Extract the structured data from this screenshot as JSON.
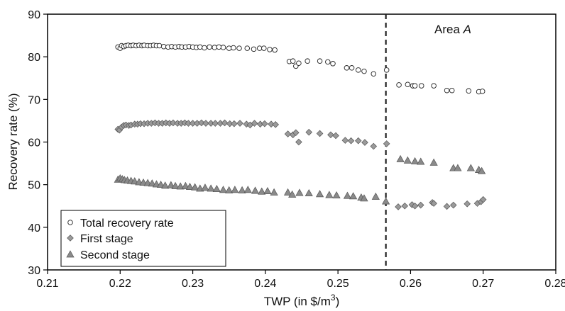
{
  "chart_data": {
    "type": "scatter",
    "xlabel": "TWP (in $/m",
    "xlabel_sup": "3",
    "xlabel_end": ")",
    "ylabel": "Recovery rate (%)",
    "xlim": [
      0.21,
      0.28
    ],
    "ylim": [
      30,
      90
    ],
    "xticks": [
      0.21,
      0.22,
      0.23,
      0.24,
      0.25,
      0.26,
      0.27,
      0.28
    ],
    "xtick_labels": [
      "0.21",
      "0.22",
      "0.23",
      "0.24",
      "0.25",
      "0.26",
      "0.27",
      "0.28"
    ],
    "yticks": [
      30,
      40,
      50,
      60,
      70,
      80,
      90
    ],
    "ytick_labels": [
      "30",
      "40",
      "50",
      "60",
      "70",
      "80",
      "90"
    ],
    "grid": false,
    "legend_position": "bottom-left",
    "vline": {
      "x": 0.2566,
      "style": "dashed"
    },
    "annotation": {
      "prefix": "Area ",
      "italic": "A"
    },
    "series": [
      {
        "name": "Total recovery rate",
        "marker": "circle",
        "color": "#ffffff",
        "points": [
          [
            0.2197,
            82.3
          ],
          [
            0.22,
            82.0
          ],
          [
            0.2202,
            82.6
          ],
          [
            0.2205,
            82.4
          ],
          [
            0.2208,
            82.6
          ],
          [
            0.2211,
            82.7
          ],
          [
            0.2215,
            82.6
          ],
          [
            0.2218,
            82.7
          ],
          [
            0.2222,
            82.6
          ],
          [
            0.2226,
            82.7
          ],
          [
            0.223,
            82.6
          ],
          [
            0.2233,
            82.7
          ],
          [
            0.2238,
            82.6
          ],
          [
            0.2242,
            82.6
          ],
          [
            0.2246,
            82.7
          ],
          [
            0.225,
            82.6
          ],
          [
            0.2254,
            82.6
          ],
          [
            0.226,
            82.4
          ],
          [
            0.2266,
            82.3
          ],
          [
            0.2271,
            82.4
          ],
          [
            0.2276,
            82.3
          ],
          [
            0.2281,
            82.4
          ],
          [
            0.2285,
            82.3
          ],
          [
            0.229,
            82.3
          ],
          [
            0.2295,
            82.4
          ],
          [
            0.23,
            82.3
          ],
          [
            0.2305,
            82.2
          ],
          [
            0.231,
            82.3
          ],
          [
            0.2316,
            82.1
          ],
          [
            0.2323,
            82.3
          ],
          [
            0.233,
            82.2
          ],
          [
            0.2336,
            82.3
          ],
          [
            0.2342,
            82.2
          ],
          [
            0.235,
            82.0
          ],
          [
            0.2356,
            82.1
          ],
          [
            0.2364,
            82.0
          ],
          [
            0.2375,
            82.0
          ],
          [
            0.2384,
            81.8
          ],
          [
            0.2392,
            82.0
          ],
          [
            0.2398,
            82.0
          ],
          [
            0.2406,
            81.7
          ],
          [
            0.2413,
            81.6
          ],
          [
            0.2433,
            78.9
          ],
          [
            0.2438,
            79.0
          ],
          [
            0.2442,
            77.8
          ],
          [
            0.2446,
            78.5
          ],
          [
            0.2458,
            79.0
          ],
          [
            0.2475,
            79.0
          ],
          [
            0.2486,
            78.8
          ],
          [
            0.2493,
            78.4
          ],
          [
            0.2512,
            77.4
          ],
          [
            0.2519,
            77.4
          ],
          [
            0.2528,
            76.9
          ],
          [
            0.2536,
            76.6
          ],
          [
            0.2549,
            76.0
          ],
          [
            0.2567,
            76.9
          ],
          [
            0.2584,
            73.4
          ],
          [
            0.2596,
            73.5
          ],
          [
            0.2603,
            73.2
          ],
          [
            0.2606,
            73.2
          ],
          [
            0.2615,
            73.2
          ],
          [
            0.2632,
            73.2
          ],
          [
            0.265,
            72.1
          ],
          [
            0.2657,
            72.1
          ],
          [
            0.268,
            72.0
          ],
          [
            0.2694,
            71.8
          ],
          [
            0.2699,
            71.9
          ]
        ]
      },
      {
        "name": "First stage",
        "marker": "diamond",
        "color": "#9a9a9a",
        "points": [
          [
            0.2197,
            63.0
          ],
          [
            0.2199,
            62.8
          ],
          [
            0.2202,
            63.5
          ],
          [
            0.2205,
            63.9
          ],
          [
            0.2208,
            64.0
          ],
          [
            0.2212,
            63.9
          ],
          [
            0.2215,
            64.0
          ],
          [
            0.222,
            64.2
          ],
          [
            0.2224,
            64.2
          ],
          [
            0.2228,
            64.3
          ],
          [
            0.2233,
            64.3
          ],
          [
            0.2238,
            64.4
          ],
          [
            0.2243,
            64.4
          ],
          [
            0.2248,
            64.5
          ],
          [
            0.2253,
            64.4
          ],
          [
            0.2258,
            64.4
          ],
          [
            0.2263,
            64.5
          ],
          [
            0.2268,
            64.4
          ],
          [
            0.2273,
            64.5
          ],
          [
            0.2279,
            64.4
          ],
          [
            0.2284,
            64.4
          ],
          [
            0.2289,
            64.5
          ],
          [
            0.2294,
            64.4
          ],
          [
            0.23,
            64.4
          ],
          [
            0.2306,
            64.4
          ],
          [
            0.2312,
            64.5
          ],
          [
            0.2318,
            64.4
          ],
          [
            0.2325,
            64.4
          ],
          [
            0.2331,
            64.4
          ],
          [
            0.2338,
            64.4
          ],
          [
            0.2344,
            64.5
          ],
          [
            0.2351,
            64.3
          ],
          [
            0.2357,
            64.3
          ],
          [
            0.2365,
            64.4
          ],
          [
            0.2374,
            64.2
          ],
          [
            0.2379,
            64.0
          ],
          [
            0.2385,
            64.4
          ],
          [
            0.2393,
            64.2
          ],
          [
            0.2399,
            64.3
          ],
          [
            0.2408,
            64.2
          ],
          [
            0.2414,
            64.1
          ],
          [
            0.2431,
            61.9
          ],
          [
            0.2438,
            61.7
          ],
          [
            0.2442,
            62.2
          ],
          [
            0.2446,
            60.0
          ],
          [
            0.246,
            62.3
          ],
          [
            0.2475,
            62.0
          ],
          [
            0.249,
            61.7
          ],
          [
            0.2497,
            61.5
          ],
          [
            0.251,
            60.4
          ],
          [
            0.2518,
            60.3
          ],
          [
            0.2528,
            60.3
          ],
          [
            0.2537,
            59.9
          ],
          [
            0.2549,
            59.0
          ],
          [
            0.2567,
            59.6
          ],
          [
            0.2583,
            44.8
          ],
          [
            0.2592,
            45.0
          ],
          [
            0.2602,
            45.3
          ],
          [
            0.2606,
            45.0
          ],
          [
            0.2614,
            45.2
          ],
          [
            0.263,
            45.8
          ],
          [
            0.2632,
            45.6
          ],
          [
            0.265,
            44.9
          ],
          [
            0.2659,
            45.2
          ],
          [
            0.2678,
            45.5
          ],
          [
            0.2692,
            45.6
          ],
          [
            0.2697,
            46.0
          ],
          [
            0.27,
            46.5
          ]
        ]
      },
      {
        "name": "Second stage",
        "marker": "triangle",
        "color": "#8a8a8a",
        "points": [
          [
            0.2197,
            51.2
          ],
          [
            0.22,
            51.5
          ],
          [
            0.2203,
            51.3
          ],
          [
            0.2206,
            51.1
          ],
          [
            0.221,
            51.0
          ],
          [
            0.2215,
            50.9
          ],
          [
            0.222,
            50.8
          ],
          [
            0.2226,
            50.6
          ],
          [
            0.2232,
            50.5
          ],
          [
            0.2238,
            50.4
          ],
          [
            0.2244,
            50.3
          ],
          [
            0.225,
            50.1
          ],
          [
            0.2256,
            50.0
          ],
          [
            0.2262,
            49.8
          ],
          [
            0.227,
            49.9
          ],
          [
            0.2276,
            49.7
          ],
          [
            0.2283,
            49.6
          ],
          [
            0.229,
            49.7
          ],
          [
            0.2296,
            49.5
          ],
          [
            0.2303,
            49.4
          ],
          [
            0.231,
            49.1
          ],
          [
            0.2317,
            49.3
          ],
          [
            0.2325,
            49.1
          ],
          [
            0.2333,
            49.0
          ],
          [
            0.2342,
            48.8
          ],
          [
            0.235,
            48.7
          ],
          [
            0.2358,
            48.8
          ],
          [
            0.2368,
            48.7
          ],
          [
            0.2376,
            48.8
          ],
          [
            0.2386,
            48.6
          ],
          [
            0.2395,
            48.4
          ],
          [
            0.2403,
            48.5
          ],
          [
            0.2412,
            48.2
          ],
          [
            0.2431,
            48.2
          ],
          [
            0.2437,
            47.7
          ],
          [
            0.2447,
            48.1
          ],
          [
            0.246,
            48.0
          ],
          [
            0.2475,
            47.8
          ],
          [
            0.2488,
            47.6
          ],
          [
            0.2498,
            47.5
          ],
          [
            0.2513,
            47.4
          ],
          [
            0.2521,
            47.3
          ],
          [
            0.2532,
            47.0
          ],
          [
            0.2536,
            46.8
          ],
          [
            0.2552,
            47.2
          ],
          [
            0.2566,
            46.1
          ],
          [
            0.2586,
            56.0
          ],
          [
            0.2596,
            55.7
          ],
          [
            0.2606,
            55.5
          ],
          [
            0.2614,
            55.4
          ],
          [
            0.2632,
            55.2
          ],
          [
            0.2659,
            53.9
          ],
          [
            0.2665,
            53.9
          ],
          [
            0.2683,
            53.9
          ],
          [
            0.2694,
            53.5
          ],
          [
            0.2698,
            53.2
          ]
        ]
      }
    ]
  }
}
